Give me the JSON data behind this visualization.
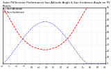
{
  "title": "Solar PV/Inverter Performance Sun Altitude Angle & Sun Incidence Angle on PV Panels",
  "legend_labels": [
    "Sun Altitude",
    "Sun Incidence"
  ],
  "line_colors": [
    "blue",
    "red"
  ],
  "line_styles": [
    "dotted",
    "dashed"
  ],
  "x_start": 6,
  "x_end": 20,
  "x_ticks": [
    6,
    7,
    8,
    9,
    10,
    11,
    12,
    13,
    14,
    15,
    16,
    17,
    18,
    19,
    20
  ],
  "altitude_data": {
    "x": [
      6,
      6.5,
      7,
      7.5,
      8,
      8.5,
      9,
      9.5,
      10,
      10.5,
      11,
      11.5,
      12,
      12.5,
      13,
      13.5,
      14,
      14.5,
      15,
      15.5,
      16,
      16.5,
      17,
      17.5,
      18,
      18.5,
      19,
      19.5,
      20
    ],
    "y": [
      0,
      5,
      12,
      20,
      28,
      36,
      44,
      51,
      57,
      62,
      65,
      67,
      67,
      65,
      62,
      57,
      51,
      44,
      36,
      28,
      20,
      12,
      5,
      0,
      0,
      0,
      0,
      0,
      0
    ]
  },
  "incidence_data": {
    "x": [
      6,
      6.5,
      7,
      7.5,
      8,
      8.5,
      9,
      9.5,
      10,
      10.5,
      11,
      11.5,
      12,
      12.5,
      13,
      13.5,
      14,
      14.5,
      15,
      15.5,
      16,
      16.5,
      17,
      17.5,
      18,
      18.5,
      19,
      19.5,
      20
    ],
    "y": [
      90,
      80,
      70,
      60,
      50,
      42,
      36,
      31,
      27,
      25,
      23,
      22,
      22,
      23,
      25,
      27,
      31,
      36,
      42,
      50,
      60,
      70,
      80,
      90,
      90,
      90,
      90,
      90,
      90
    ]
  },
  "ylim": [
    0,
    90
  ],
  "yticks": [
    0,
    10,
    20,
    30,
    40,
    50,
    60,
    70,
    80,
    90
  ],
  "background_color": "#ffffff",
  "grid_color": "#aaaaaa",
  "title_fontsize": 2.8,
  "tick_fontsize": 2.2,
  "legend_fontsize": 2.5,
  "linewidth": 0.6,
  "dot_size": 0.5
}
